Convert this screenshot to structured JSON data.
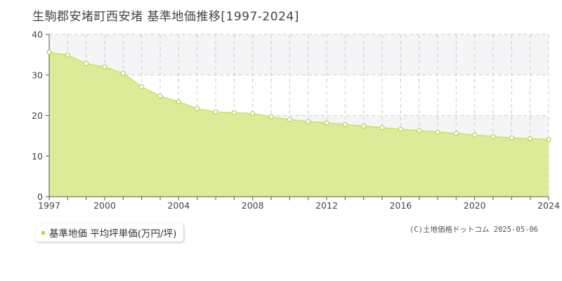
{
  "title": "生駒郡安堵町西安堵 基準地価推移[1997-2024]",
  "legend": {
    "label": "基準地価 平均坪単価(万円/坪)"
  },
  "credit": "(C)土地価格ドットコム 2025-05-06",
  "colors": {
    "area_fill": "#dbec98",
    "line": "#c5e264",
    "marker_stroke": "#b2d44e",
    "band": "#f5f5f8",
    "grid": "#cccccc",
    "axis": "#555555",
    "legend_swatch": "#b5d543"
  },
  "chart_data": {
    "type": "area",
    "x": [
      1997,
      1998,
      1999,
      2000,
      2001,
      2002,
      2003,
      2004,
      2005,
      2006,
      2007,
      2008,
      2009,
      2010,
      2011,
      2012,
      2013,
      2014,
      2015,
      2016,
      2017,
      2018,
      2019,
      2020,
      2021,
      2022,
      2023,
      2024
    ],
    "series": [
      {
        "name": "基準地価 平均坪単価(万円/坪)",
        "values": [
          35.6,
          34.9,
          32.8,
          32.0,
          30.4,
          27.1,
          24.8,
          23.4,
          21.7,
          20.9,
          20.7,
          20.5,
          19.7,
          19.0,
          18.5,
          18.2,
          17.8,
          17.4,
          17.0,
          16.6,
          16.3,
          15.9,
          15.6,
          15.2,
          14.8,
          14.5,
          14.3,
          14.1
        ]
      }
    ],
    "xticks": [
      1997,
      2000,
      2004,
      2008,
      2012,
      2016,
      2020,
      2024
    ],
    "yticks": [
      0,
      10,
      20,
      30,
      40
    ],
    "xlim": [
      1997,
      2024
    ],
    "ylim": [
      0,
      40
    ],
    "grid": true
  }
}
